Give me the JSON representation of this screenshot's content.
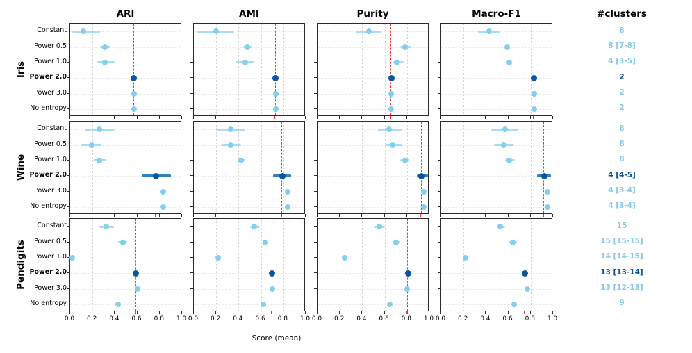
{
  "figure": {
    "clusters_title": "#clusters",
    "xlabel": "Score (mean)",
    "x_tick_labels": [
      "0.0",
      "0.2",
      "0.4",
      "0.6",
      "0.8",
      "1.0"
    ]
  },
  "colors": {
    "light_marker": "#87ceeb",
    "light_errbar": "#a8dcf2",
    "dark_marker": "#0b559f",
    "dark_errbar": "#3182bd",
    "refline_red": "#ee3333",
    "cluster_text_light": "#85c8e8",
    "cluster_text_dark": "#08519c"
  },
  "chart_data": {
    "type": "scatter",
    "subtype": "horizontal dot plot with error bars, 3 dataset rows x 4 metric columns",
    "xlim": [
      0.0,
      1.0
    ],
    "x_ticks": [
      0.0,
      0.2,
      0.4,
      0.6,
      0.8,
      1.0
    ],
    "xlabel": "Score (mean)",
    "metrics": [
      "ARI",
      "AMI",
      "Purity",
      "Macro-F1"
    ],
    "methods": [
      "Constant",
      "Power 0.5",
      "Power 1.0",
      "Power 2.0",
      "Power 3.0",
      "No entropy"
    ],
    "highlight_method_index": 3,
    "refline_meaning": "vertical red dashed line at the Power 2.0 mean score",
    "clusters_column_title": "#clusters",
    "datasets": [
      {
        "name": "Iris",
        "clusters": [
          "8",
          "8 [7-8]",
          "4 [3-5]",
          "2",
          "2",
          "2"
        ],
        "reflines": {
          "ARI": 0.57,
          "AMI": 0.73,
          "Purity": 0.66,
          "Macro-F1": 0.83
        },
        "series": {
          "ARI": [
            [
              0.12,
              0.02,
              0.27
            ],
            [
              0.31,
              0.27,
              0.36
            ],
            [
              0.31,
              0.24,
              0.4
            ],
            [
              0.57,
              0.57,
              0.57
            ],
            [
              0.57,
              0.57,
              0.57
            ],
            [
              0.57,
              0.57,
              0.57
            ]
          ],
          "AMI": [
            [
              0.2,
              0.03,
              0.36
            ],
            [
              0.48,
              0.44,
              0.52
            ],
            [
              0.46,
              0.38,
              0.54
            ],
            [
              0.73,
              0.73,
              0.73
            ],
            [
              0.73,
              0.73,
              0.73
            ],
            [
              0.73,
              0.73,
              0.73
            ]
          ],
          "Purity": [
            [
              0.46,
              0.35,
              0.57
            ],
            [
              0.78,
              0.74,
              0.84
            ],
            [
              0.71,
              0.67,
              0.77
            ],
            [
              0.66,
              0.66,
              0.66
            ],
            [
              0.66,
              0.66,
              0.66
            ],
            [
              0.66,
              0.66,
              0.66
            ]
          ],
          "Macro-F1": [
            [
              0.43,
              0.33,
              0.53
            ],
            [
              0.59,
              0.57,
              0.61
            ],
            [
              0.61,
              0.59,
              0.63
            ],
            [
              0.83,
              0.83,
              0.83
            ],
            [
              0.83,
              0.83,
              0.83
            ],
            [
              0.83,
              0.83,
              0.83
            ]
          ]
        }
      },
      {
        "name": "Wine",
        "clusters": [
          "8",
          "8",
          "8",
          "4 [4-5]",
          "4 [3-4]",
          "4 [3-4]"
        ],
        "reflines": {
          "ARI": 0.77,
          "AMI": 0.79,
          "Purity": 0.93,
          "Macro-F1": 0.92
        },
        "series": {
          "ARI": [
            [
              0.26,
              0.13,
              0.4
            ],
            [
              0.19,
              0.1,
              0.28
            ],
            [
              0.26,
              0.21,
              0.32
            ],
            [
              0.77,
              0.64,
              0.9
            ],
            [
              0.83,
              0.83,
              0.83
            ],
            [
              0.83,
              0.83,
              0.83
            ]
          ],
          "AMI": [
            [
              0.33,
              0.2,
              0.46
            ],
            [
              0.33,
              0.24,
              0.42
            ],
            [
              0.42,
              0.39,
              0.46
            ],
            [
              0.79,
              0.71,
              0.87
            ],
            [
              0.84,
              0.84,
              0.84
            ],
            [
              0.84,
              0.84,
              0.84
            ]
          ],
          "Purity": [
            [
              0.64,
              0.54,
              0.75
            ],
            [
              0.67,
              0.6,
              0.76
            ],
            [
              0.78,
              0.74,
              0.82
            ],
            [
              0.93,
              0.89,
              0.99
            ],
            [
              0.95,
              0.95,
              0.95
            ],
            [
              0.95,
              0.95,
              0.95
            ]
          ],
          "Macro-F1": [
            [
              0.57,
              0.45,
              0.69
            ],
            [
              0.56,
              0.47,
              0.65
            ],
            [
              0.61,
              0.57,
              0.66
            ],
            [
              0.92,
              0.86,
              0.98
            ],
            [
              0.95,
              0.95,
              0.95
            ],
            [
              0.95,
              0.95,
              0.95
            ]
          ]
        }
      },
      {
        "name": "Pendigits",
        "clusters": [
          "15",
          "15 [15-15]",
          "14 [14-15]",
          "13 [13-14]",
          "13 [12-13]",
          "9"
        ],
        "reflines": {
          "ARI": 0.59,
          "AMI": 0.7,
          "Purity": 0.81,
          "Macro-F1": 0.75
        },
        "series": {
          "ARI": [
            [
              0.32,
              0.26,
              0.39
            ],
            [
              0.47,
              0.43,
              0.51
            ],
            [
              0.02,
              0.01,
              0.03
            ],
            [
              0.59,
              0.58,
              0.6
            ],
            [
              0.6,
              0.6,
              0.6
            ],
            [
              0.43,
              0.43,
              0.43
            ]
          ],
          "AMI": [
            [
              0.54,
              0.5,
              0.59
            ],
            [
              0.64,
              0.62,
              0.66
            ],
            [
              0.22,
              0.2,
              0.24
            ],
            [
              0.7,
              0.69,
              0.71
            ],
            [
              0.7,
              0.7,
              0.7
            ],
            [
              0.62,
              0.62,
              0.62
            ]
          ],
          "Purity": [
            [
              0.55,
              0.51,
              0.6
            ],
            [
              0.7,
              0.67,
              0.74
            ],
            [
              0.24,
              0.23,
              0.25
            ],
            [
              0.81,
              0.8,
              0.82
            ],
            [
              0.8,
              0.8,
              0.8
            ],
            [
              0.645,
              0.645,
              0.645
            ]
          ],
          "Macro-F1": [
            [
              0.53,
              0.5,
              0.57
            ],
            [
              0.64,
              0.61,
              0.68
            ],
            [
              0.22,
              0.21,
              0.23
            ],
            [
              0.75,
              0.74,
              0.76
            ],
            [
              0.77,
              0.77,
              0.77
            ],
            [
              0.65,
              0.65,
              0.65
            ]
          ]
        }
      }
    ]
  }
}
